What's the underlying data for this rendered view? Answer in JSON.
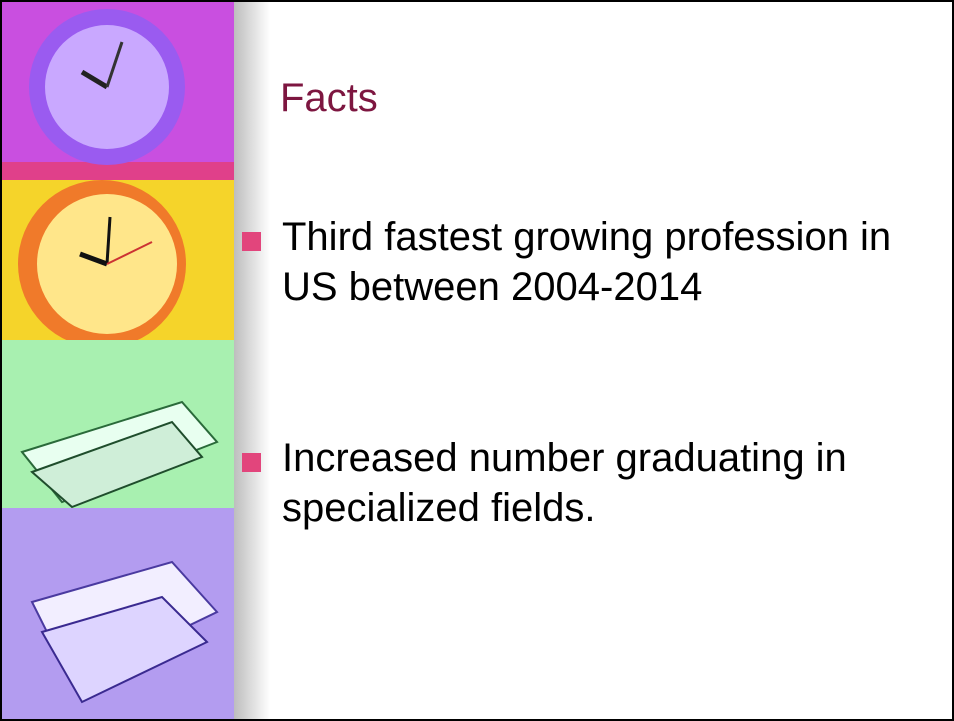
{
  "slide": {
    "title": "Facts",
    "bullets": [
      "Third fastest growing profession in US between 2004-2014",
      "Increased number graduating in specialized fields."
    ]
  }
}
